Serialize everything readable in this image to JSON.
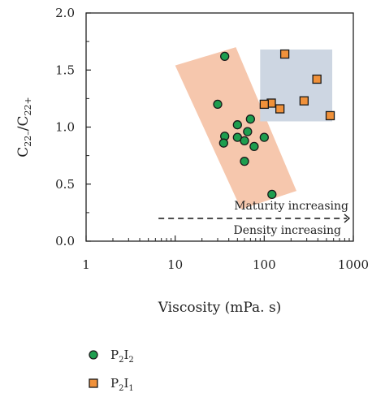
{
  "chart_data": {
    "type": "scatter",
    "xlabel": "Viscosity (mPa. s)",
    "ylabel": {
      "main": "C",
      "sub1": "22–",
      "sep": "/C",
      "sub2": "22+"
    },
    "xscale": "log",
    "xlim": [
      1,
      1000
    ],
    "ylim": [
      0,
      2.0
    ],
    "xticks": [
      {
        "value": 1,
        "label": "1"
      },
      {
        "value": 10,
        "label": "10"
      },
      {
        "value": 100,
        "label": "100"
      },
      {
        "value": 1000,
        "label": "1000"
      }
    ],
    "yticks": [
      {
        "value": 0,
        "label": "0.0"
      },
      {
        "value": 0.5,
        "label": "0.5"
      },
      {
        "value": 1.0,
        "label": "1.0"
      },
      {
        "value": 1.5,
        "label": "1.5"
      },
      {
        "value": 2.0,
        "label": "2.0"
      }
    ],
    "grid": false,
    "legend_position": "bottom-left",
    "series": [
      {
        "name": "P2I2",
        "name_parts": {
          "p": "P",
          "s1": "2",
          "i": "I",
          "s2": "2"
        },
        "marker": "circle",
        "color": "#1e9e4f",
        "points": [
          {
            "x": 36,
            "y": 1.62
          },
          {
            "x": 30,
            "y": 1.2
          },
          {
            "x": 70,
            "y": 1.07
          },
          {
            "x": 50,
            "y": 1.02
          },
          {
            "x": 65,
            "y": 0.96
          },
          {
            "x": 36,
            "y": 0.92
          },
          {
            "x": 50,
            "y": 0.91
          },
          {
            "x": 100,
            "y": 0.91
          },
          {
            "x": 60,
            "y": 0.88
          },
          {
            "x": 35,
            "y": 0.86
          },
          {
            "x": 77,
            "y": 0.83
          },
          {
            "x": 60,
            "y": 0.7
          },
          {
            "x": 122,
            "y": 0.41
          }
        ]
      },
      {
        "name": "P2I1",
        "name_parts": {
          "p": "P",
          "s1": "2",
          "i": "I",
          "s2": "1"
        },
        "marker": "square",
        "color": "#f0913a",
        "points": [
          {
            "x": 170,
            "y": 1.64
          },
          {
            "x": 390,
            "y": 1.42
          },
          {
            "x": 280,
            "y": 1.23
          },
          {
            "x": 120,
            "y": 1.21
          },
          {
            "x": 100,
            "y": 1.2
          },
          {
            "x": 150,
            "y": 1.16
          },
          {
            "x": 550,
            "y": 1.1
          }
        ]
      }
    ],
    "regions": [
      {
        "type": "rotated-rectangle",
        "color": "#f6c7ad",
        "corners": [
          {
            "x": 10,
            "y": 1.54
          },
          {
            "x": 48,
            "y": 1.7
          },
          {
            "x": 230,
            "y": 0.44
          },
          {
            "x": 55,
            "y": 0.28
          }
        ]
      },
      {
        "type": "rectangle",
        "color": "#cdd6e2",
        "x": [
          90,
          580
        ],
        "y": [
          1.05,
          1.68
        ]
      }
    ],
    "annotations": [
      {
        "text": "Maturity increasing",
        "position": "above-arrow"
      },
      {
        "text": "Density increasing",
        "position": "below-arrow"
      }
    ],
    "trend_arrow": {
      "style": "dashed",
      "direction": "right",
      "x_start": 6.5,
      "x_end": 1000,
      "y": 0.2
    }
  }
}
